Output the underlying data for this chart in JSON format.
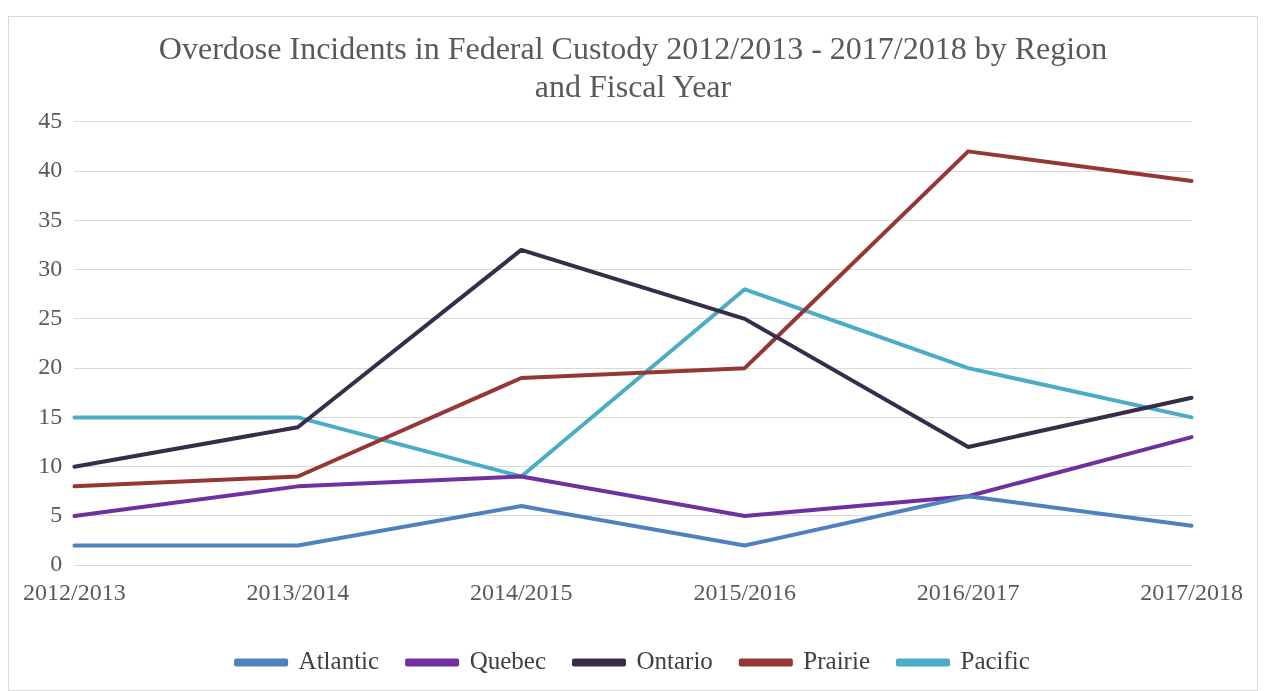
{
  "chart_data": {
    "type": "line",
    "title": "Overdose Incidents in Federal Custody 2012/2013 - 2017/2018 by Region and Fiscal Year",
    "categories": [
      "2012/2013",
      "2013/2014",
      "2014/2015",
      "2015/2016",
      "2016/2017",
      "2017/2018"
    ],
    "series": [
      {
        "name": "Atlantic",
        "color": "#4f81bd",
        "values": [
          2,
          2,
          6,
          2,
          7,
          4
        ]
      },
      {
        "name": "Quebec",
        "color": "#7030a0",
        "values": [
          5,
          8,
          9,
          5,
          7,
          13
        ]
      },
      {
        "name": "Ontario",
        "color": "#392c4b",
        "values": [
          10,
          14,
          32,
          25,
          12,
          17
        ]
      },
      {
        "name": "Prairie",
        "color": "#953735",
        "values": [
          8,
          9,
          19,
          20,
          42,
          39
        ]
      },
      {
        "name": "Pacific",
        "color": "#4bacc6",
        "values": [
          15,
          15,
          9,
          28,
          20,
          15
        ]
      }
    ],
    "ylim": [
      0,
      45
    ],
    "yticks": [
      0,
      5,
      10,
      15,
      20,
      25,
      30,
      35,
      40,
      45
    ],
    "grid": "y",
    "legend": "bottom",
    "marker": "none",
    "line_style": "solid"
  }
}
